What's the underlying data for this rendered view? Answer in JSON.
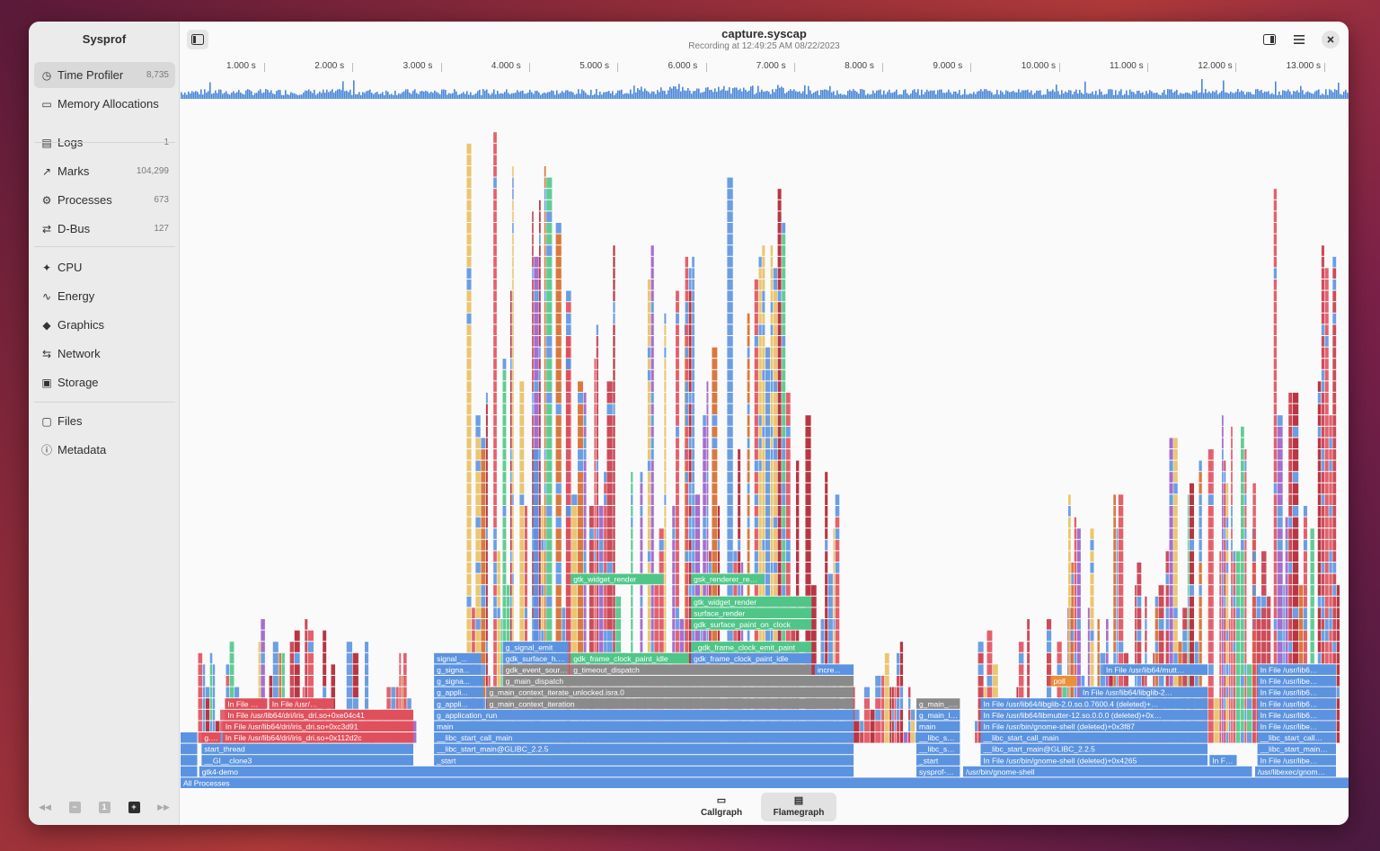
{
  "app": {
    "name": "Sysprof"
  },
  "header": {
    "title": "capture.syscap",
    "subtitle": "Recording at 12:49:25 AM 08/22/2023"
  },
  "sidebar": {
    "items": [
      {
        "label": "Time Profiler",
        "count": "8,735",
        "icon": "clock-icon",
        "selected": true
      },
      {
        "label": "Memory Allocations",
        "count": "",
        "icon": "memory-icon"
      },
      {
        "label": "Logs",
        "count": "1",
        "icon": "log-icon"
      },
      {
        "label": "Marks",
        "count": "104,299",
        "icon": "marks-chart-icon"
      },
      {
        "label": "Processes",
        "count": "673",
        "icon": "processes-icon"
      },
      {
        "label": "D-Bus",
        "count": "127",
        "icon": "dbus-icon"
      },
      {
        "label": "CPU",
        "count": "",
        "icon": "cpu-icon"
      },
      {
        "label": "Energy",
        "count": "",
        "icon": "energy-icon"
      },
      {
        "label": "Graphics",
        "count": "",
        "icon": "graphics-cube-icon"
      },
      {
        "label": "Network",
        "count": "",
        "icon": "network-arrows-icon"
      },
      {
        "label": "Storage",
        "count": "",
        "icon": "storage-icon"
      },
      {
        "label": "Files",
        "count": "",
        "icon": "folder-icon"
      },
      {
        "label": "Metadata",
        "count": "",
        "icon": "info-icon"
      }
    ]
  },
  "timeline": {
    "ticks": [
      "1.000 s",
      "2.000 s",
      "3.000 s",
      "4.000 s",
      "5.000 s",
      "6.000 s",
      "7.000 s",
      "8.000 s",
      "9.000 s",
      "10.000 s",
      "11.000 s",
      "12.000 s",
      "13.000 s"
    ]
  },
  "flamegraph": {
    "root": "All Processes",
    "frames": [
      {
        "t": "C...",
        "d": 0,
        "s": 0.0,
        "e": 0.015,
        "c": "blue"
      },
      {
        "t": "gtk4-demo",
        "d": 0,
        "s": 0.016,
        "e": 0.577,
        "c": "blue"
      },
      {
        "t": "sysprof-cli",
        "d": 0,
        "s": 0.63,
        "e": 0.668,
        "c": "blue"
      },
      {
        "t": "/usr/bin/gnome-shell",
        "d": 0,
        "s": 0.67,
        "e": 0.918,
        "c": "blue"
      },
      {
        "t": "/usr/libexec/gnom...",
        "d": 0,
        "s": 0.92,
        "e": 0.99,
        "c": "blue"
      },
      {
        "t": "In...",
        "d": 1,
        "s": 0.0,
        "e": 0.015,
        "c": "blue"
      },
      {
        "t": "__GI__clone3",
        "d": 1,
        "s": 0.018,
        "e": 0.2,
        "c": "blue"
      },
      {
        "t": "_start",
        "d": 1,
        "s": 0.217,
        "e": 0.577,
        "c": "blue"
      },
      {
        "t": "_start",
        "d": 1,
        "s": 0.63,
        "e": 0.668,
        "c": "blue"
      },
      {
        "t": "In File /usr/bin/gnome-shell (deleted)+0x4265",
        "d": 1,
        "s": 0.685,
        "e": 0.88,
        "c": "blue"
      },
      {
        "t": "In Fil...",
        "d": 1,
        "s": 0.881,
        "e": 0.905,
        "c": "blue"
      },
      {
        "t": "In File /usr/libexec...",
        "d": 1,
        "s": 0.922,
        "e": 0.99,
        "c": "blue"
      },
      {
        "t": "In...",
        "d": 2,
        "s": 0.0,
        "e": 0.015,
        "c": "blue"
      },
      {
        "t": "start_thread",
        "d": 2,
        "s": 0.018,
        "e": 0.2,
        "c": "blue"
      },
      {
        "t": "__libc_start_main@GLIBC_2.2.5",
        "d": 2,
        "s": 0.217,
        "e": 0.577,
        "c": "blue"
      },
      {
        "t": "__libc_st...",
        "d": 2,
        "s": 0.63,
        "e": 0.668,
        "c": "blue"
      },
      {
        "t": "__libc_start_main@GLIBC_2.2.5",
        "d": 2,
        "s": 0.685,
        "e": 0.88,
        "c": "blue"
      },
      {
        "t": "__libc_start_main...",
        "d": 2,
        "s": 0.922,
        "e": 0.99,
        "c": "blue"
      },
      {
        "t": "I...",
        "d": 3,
        "s": 0.0,
        "e": 0.015,
        "c": "blue"
      },
      {
        "t": "g...",
        "d": 3,
        "s": 0.018,
        "e": 0.035,
        "c": "red"
      },
      {
        "t": "In File /usr/lib64/dri/iris_dri.so+0x112d2c",
        "d": 3,
        "s": 0.036,
        "e": 0.2,
        "c": "red"
      },
      {
        "t": "__libc_start_call_main",
        "d": 3,
        "s": 0.217,
        "e": 0.577,
        "c": "blue"
      },
      {
        "t": "__libc_st...",
        "d": 3,
        "s": 0.63,
        "e": 0.668,
        "c": "blue"
      },
      {
        "t": "__libc_start_call_main",
        "d": 3,
        "s": 0.685,
        "e": 0.88,
        "c": "blue"
      },
      {
        "t": "__libc_start_call...",
        "d": 3,
        "s": 0.922,
        "e": 0.99,
        "c": "blue"
      },
      {
        "t": "In File /usr/lib64/dri/iris_dri.so+0xc3d91",
        "d": 4,
        "s": 0.036,
        "e": 0.2,
        "c": "red"
      },
      {
        "t": "main",
        "d": 4,
        "s": 0.217,
        "e": 0.577,
        "c": "blue"
      },
      {
        "t": "main",
        "d": 4,
        "s": 0.63,
        "e": 0.668,
        "c": "blue"
      },
      {
        "t": "In File /usr/bin/gnome-shell (deleted)+0x3f87",
        "d": 4,
        "s": 0.685,
        "e": 0.88,
        "c": "blue"
      },
      {
        "t": "In File /usr/libexec...",
        "d": 4,
        "s": 0.922,
        "e": 0.99,
        "c": "blue"
      },
      {
        "t": "In File /usr/lib64/dri/iris_dri.so+0xe04c41",
        "d": 5,
        "s": 0.038,
        "e": 0.2,
        "c": "red"
      },
      {
        "t": "g_application_run",
        "d": 5,
        "s": 0.217,
        "e": 0.577,
        "c": "blue"
      },
      {
        "t": "g_main_l...",
        "d": 5,
        "s": 0.63,
        "e": 0.668,
        "c": "blue"
      },
      {
        "t": "In File /usr/lib64/libmutter-12.so.0.0.0 (deleted)+0xd52aa",
        "d": 5,
        "s": 0.685,
        "e": 0.88,
        "c": "blue"
      },
      {
        "t": "In File /usr/lib64/l...",
        "d": 5,
        "s": 0.922,
        "e": 0.99,
        "c": "blue"
      },
      {
        "t": "In File /usr/...",
        "d": 6,
        "s": 0.038,
        "e": 0.075,
        "c": "red"
      },
      {
        "t": "In File /usr/lib...",
        "d": 6,
        "s": 0.076,
        "e": 0.132,
        "c": "red"
      },
      {
        "t": "g_appli...",
        "d": 6,
        "s": 0.217,
        "e": 0.26,
        "c": "blue"
      },
      {
        "t": "g_main_context_iteration",
        "d": 6,
        "s": 0.262,
        "e": 0.577,
        "c": "gray"
      },
      {
        "t": "g_main_...",
        "d": 6,
        "s": 0.63,
        "e": 0.668,
        "c": "gray"
      },
      {
        "t": "In File /usr/lib64/libglib-2.0.so.0.7600.4 (deleted)+0x5ba8f",
        "d": 6,
        "s": 0.685,
        "e": 0.88,
        "c": "blue"
      },
      {
        "t": "In File /usr/lib64/l...",
        "d": 6,
        "s": 0.922,
        "e": 0.99,
        "c": "blue"
      },
      {
        "t": "g_appli...",
        "d": 7,
        "s": 0.217,
        "e": 0.26,
        "c": "blue"
      },
      {
        "t": "g_main_context_iterate_unlocked.isra.0",
        "d": 7,
        "s": 0.262,
        "e": 0.577,
        "c": "gray"
      },
      {
        "t": "In File /usr/lib64/libglib-2.0.so...",
        "d": 7,
        "s": 0.77,
        "e": 0.88,
        "c": "blue"
      },
      {
        "t": "In File /usr/lib64/l...",
        "d": 7,
        "s": 0.922,
        "e": 0.99,
        "c": "blue"
      },
      {
        "t": "g_signa...",
        "d": 8,
        "s": 0.217,
        "e": 0.26,
        "c": "blue"
      },
      {
        "t": "g_main_dispatch",
        "d": 8,
        "s": 0.276,
        "e": 0.577,
        "c": "gray"
      },
      {
        "t": "poll",
        "d": 8,
        "s": 0.745,
        "e": 0.768,
        "c": "orange"
      },
      {
        "t": "In File /usr/libexec...",
        "d": 8,
        "s": 0.922,
        "e": 0.99,
        "c": "blue"
      },
      {
        "t": "g_signa...",
        "d": 9,
        "s": 0.217,
        "e": 0.258,
        "c": "blue"
      },
      {
        "t": "gdk_event_sour...",
        "d": 9,
        "s": 0.276,
        "e": 0.333,
        "c": "gray"
      },
      {
        "t": "g_timeout_dispatch",
        "d": 9,
        "s": 0.334,
        "e": 0.541,
        "c": "gray"
      },
      {
        "t": "incre...",
        "d": 9,
        "s": 0.543,
        "e": 0.577,
        "c": "blue"
      },
      {
        "t": "In File /usr/lib64/mutter...",
        "d": 9,
        "s": 0.79,
        "e": 0.88,
        "c": "blue"
      },
      {
        "t": "In File /usr/lib64/l...",
        "d": 9,
        "s": 0.922,
        "e": 0.99,
        "c": "blue"
      },
      {
        "t": "signal_...",
        "d": 10,
        "s": 0.217,
        "e": 0.258,
        "c": "blue"
      },
      {
        "t": "gdk_surface_h...",
        "d": 10,
        "s": 0.276,
        "e": 0.333,
        "c": "blue"
      },
      {
        "t": "gdk_frame_clock_paint_idle",
        "d": 10,
        "s": 0.334,
        "e": 0.436,
        "c": "green"
      },
      {
        "t": "gdk_frame_clock_paint_idle",
        "d": 10,
        "s": 0.437,
        "e": 0.541,
        "c": "blue"
      },
      {
        "t": "g_signal_emit",
        "d": 11,
        "s": 0.276,
        "e": 0.333,
        "c": "blue"
      },
      {
        "t": "_gdk_frame_clock_emit_paint",
        "d": 11,
        "s": 0.437,
        "e": 0.541,
        "c": "green"
      },
      {
        "t": "gdk_surface_paint_on_clock",
        "d": 13,
        "s": 0.437,
        "e": 0.541,
        "c": "green"
      },
      {
        "t": "gtk_widget_render",
        "d": 15,
        "s": 0.437,
        "e": 0.541,
        "c": "green"
      },
      {
        "t": "surface_render",
        "d": 14,
        "s": 0.437,
        "e": 0.541,
        "c": "green"
      },
      {
        "t": "gsk_renderer_ren...",
        "d": 17,
        "s": 0.437,
        "e": 0.5,
        "c": "green"
      },
      {
        "t": "gtk_widget_render",
        "d": 17,
        "s": 0.334,
        "e": 0.414,
        "c": "green"
      }
    ]
  },
  "views": [
    {
      "label": "Callgraph",
      "icon": "callgraph-icon",
      "active": false
    },
    {
      "label": "Flamegraph",
      "icon": "flamegraph-icon",
      "active": true
    }
  ],
  "colors": {
    "blue": "#5b93e0",
    "red": "#e0505c",
    "green": "#4fc688",
    "gray": "#8a8a8a",
    "orange": "#e8903a",
    "accent": "#4a86d8"
  }
}
